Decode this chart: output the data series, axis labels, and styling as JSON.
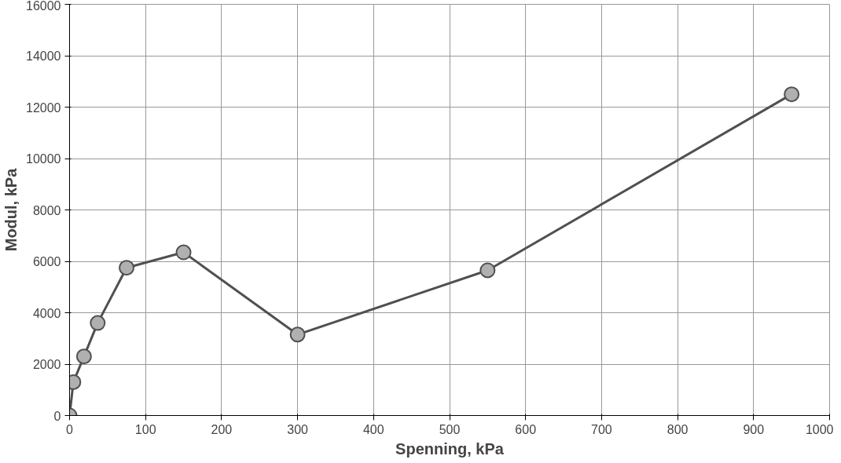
{
  "chart_data": {
    "type": "line",
    "xlabel": "Spenning, kPa",
    "ylabel": "Modul, kPa",
    "x": [
      0,
      5,
      19,
      37,
      75,
      150,
      300,
      550,
      950
    ],
    "series": [
      {
        "color": "#505050",
        "values": [
          0,
          1300,
          2300,
          3600,
          5750,
          6350,
          3150,
          5650,
          12500
        ]
      }
    ],
    "marker": "circle",
    "line_style": "solid",
    "grid": true,
    "xlim": [
      0,
      1000
    ],
    "xticks": [
      0,
      100,
      200,
      300,
      400,
      500,
      600,
      700,
      800,
      900,
      1000
    ],
    "ylim": [
      0,
      16000
    ],
    "yticks": [
      0,
      2000,
      4000,
      6000,
      8000,
      10000,
      12000,
      14000,
      16000
    ]
  }
}
